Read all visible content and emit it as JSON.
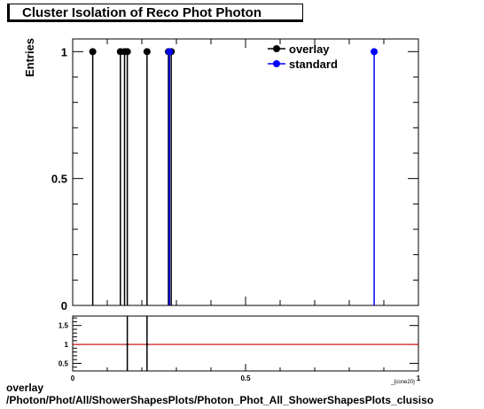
{
  "chart_data": {
    "type": "scatter",
    "title": "Cluster Isolation of Reco Phot Photon",
    "ylabel": "Entries",
    "xlabel": "_{cone20}",
    "main": {
      "xlim": [
        0,
        1
      ],
      "ylim": [
        0,
        1.05
      ],
      "yticks": [
        "0",
        "0.5",
        "1"
      ],
      "yticks_values": [
        0,
        0.5,
        1
      ],
      "series": [
        {
          "name": "overlay",
          "color": "#000000",
          "x": [
            0.058,
            0.138,
            0.15,
            0.158,
            0.215,
            0.277,
            0.285
          ],
          "y": [
            1,
            1,
            1,
            1,
            1,
            1,
            1
          ]
        },
        {
          "name": "standard",
          "color": "#0000ff",
          "x": [
            0.872,
            0.28
          ],
          "y": [
            1,
            1
          ]
        }
      ],
      "legend": "top-right"
    },
    "ratio": {
      "xlim": [
        0,
        1
      ],
      "ylim": [
        0.3,
        1.75
      ],
      "yticks": [
        "0.5",
        "1",
        "1.5"
      ],
      "yticks_values": [
        0.5,
        1,
        1.5
      ],
      "xticks": [
        "0",
        "0.5",
        "1"
      ],
      "xticks_values": [
        0,
        0.5,
        1
      ],
      "reference_line": 1,
      "reference_color": "#cc0000",
      "x": [
        0.158,
        0.215
      ],
      "y": [
        1,
        1
      ]
    }
  },
  "footer": {
    "line1": "overlay",
    "line2": "/Photon/Phot/All/ShowerShapesPlots/Photon_Phot_All_ShowerShapesPlots_clusiso"
  }
}
